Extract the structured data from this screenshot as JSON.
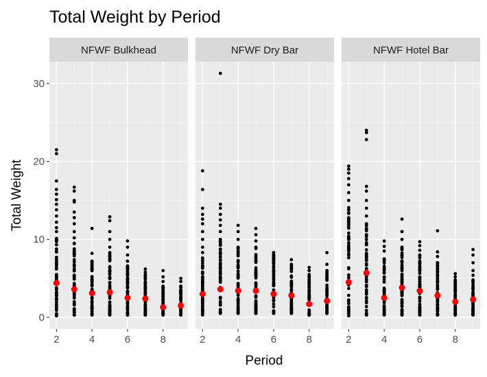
{
  "chart_data": {
    "type": "scatter",
    "title": "Total Weight by Period",
    "xlabel": "Period",
    "ylabel": "Total Weight",
    "xlim": [
      1.6,
      9.4
    ],
    "ylim": [
      -1.5,
      32.8
    ],
    "x_ticks": [
      2,
      4,
      6,
      8
    ],
    "y_ticks": [
      0,
      10,
      20,
      30
    ],
    "grid": true,
    "legend": "none",
    "point_color": "#000000",
    "mean_color": "#ff0000",
    "panels": [
      {
        "name": "NFWF Bulkhead",
        "series": [
          {
            "x": 2,
            "min": 0.2,
            "dense_max": 11,
            "outliers": [
              11.5,
              12.2,
              13.0,
              13.8,
              14.5,
              15.1,
              15.8,
              16.4,
              17.5,
              21.0,
              21.5
            ],
            "mean": 4.4
          },
          {
            "x": 3,
            "min": 0.3,
            "dense_max": 9.5,
            "outliers": [
              10.2,
              11.0,
              12.0,
              12.8,
              13.5,
              14.8,
              15.0,
              16.2,
              16.7
            ],
            "mean": 3.6
          },
          {
            "x": 4,
            "min": 0.3,
            "dense_max": 7.2,
            "outliers": [
              8.2,
              11.4
            ],
            "mean": 3.1
          },
          {
            "x": 5,
            "min": 0.3,
            "dense_max": 8.3,
            "outliers": [
              9.0,
              10.0,
              11.0,
              12.4,
              12.9
            ],
            "mean": 3.2
          },
          {
            "x": 6,
            "min": 0.3,
            "dense_max": 6.6,
            "outliers": [
              7.2,
              8.0,
              9.0,
              9.8
            ],
            "mean": 2.5
          },
          {
            "x": 7,
            "min": 0.3,
            "dense_max": 5.8,
            "outliers": [
              6.2
            ],
            "mean": 2.4
          },
          {
            "x": 8,
            "min": 0.3,
            "dense_max": 4.0,
            "outliers": [
              4.6,
              5.2,
              6.0
            ],
            "mean": 1.3
          },
          {
            "x": 9,
            "min": 0.3,
            "dense_max": 4.0,
            "outliers": [
              4.6,
              5.0
            ],
            "mean": 1.5
          }
        ]
      },
      {
        "name": "NFWF Dry Bar",
        "series": [
          {
            "x": 2,
            "min": 0.3,
            "dense_max": 9.0,
            "outliers": [
              10.0,
              11.0,
              12.0,
              12.6,
              13.2,
              14.0,
              16.4,
              18.8
            ],
            "mean": 3.0
          },
          {
            "x": 3,
            "min": 0.5,
            "dense_max": 10.0,
            "outliers": [
              11.0,
              11.8,
              12.5,
              13.2,
              14.0,
              14.5,
              31.3
            ],
            "mean": 3.6
          },
          {
            "x": 4,
            "min": 0.5,
            "dense_max": 9.0,
            "outliers": [
              10.0,
              11.0,
              11.8
            ],
            "mean": 3.4
          },
          {
            "x": 5,
            "min": 0.5,
            "dense_max": 9.0,
            "outliers": [
              9.8,
              10.6,
              11.4
            ],
            "mean": 3.4
          },
          {
            "x": 6,
            "min": 0.5,
            "dense_max": 8.3,
            "outliers": [],
            "mean": 3.0
          },
          {
            "x": 7,
            "min": 0.5,
            "dense_max": 6.8,
            "outliers": [
              7.4
            ],
            "mean": 2.8
          },
          {
            "x": 8,
            "min": 0.3,
            "dense_max": 5.5,
            "outliers": [
              6.0,
              6.4
            ],
            "mean": 1.7
          },
          {
            "x": 9,
            "min": 0.5,
            "dense_max": 6.0,
            "outliers": [
              6.8,
              8.3
            ],
            "mean": 2.1
          }
        ]
      },
      {
        "name": "NFWF Hotel Bar",
        "series": [
          {
            "x": 2,
            "min": 0.2,
            "dense_max": 15.0,
            "outliers": [
              16.0,
              17.0,
              17.8,
              18.5,
              19.0,
              19.4
            ],
            "mean": 4.5
          },
          {
            "x": 3,
            "min": 0.3,
            "dense_max": 12.0,
            "outliers": [
              13.0,
              14.0,
              15.0,
              16.2,
              16.8,
              22.8,
              23.7,
              24.0
            ],
            "mean": 5.7
          },
          {
            "x": 4,
            "min": 0.3,
            "dense_max": 7.5,
            "outliers": [
              8.5,
              9.1,
              9.8
            ],
            "mean": 2.5
          },
          {
            "x": 5,
            "min": 0.3,
            "dense_max": 9.0,
            "outliers": [
              10.0,
              11.0,
              12.6
            ],
            "mean": 3.8
          },
          {
            "x": 6,
            "min": 0.3,
            "dense_max": 8.0,
            "outliers": [
              8.6,
              9.2,
              9.7
            ],
            "mean": 3.4
          },
          {
            "x": 7,
            "min": 0.3,
            "dense_max": 7.0,
            "outliers": [
              7.8,
              8.4,
              11.1
            ],
            "mean": 2.8
          },
          {
            "x": 8,
            "min": 0.3,
            "dense_max": 4.8,
            "outliers": [
              5.2,
              5.6
            ],
            "mean": 2.0
          },
          {
            "x": 9,
            "min": 0.3,
            "dense_max": 4.8,
            "outliers": [
              5.4,
              6.0,
              7.0,
              8.0,
              8.7
            ],
            "mean": 2.3
          }
        ]
      }
    ]
  }
}
